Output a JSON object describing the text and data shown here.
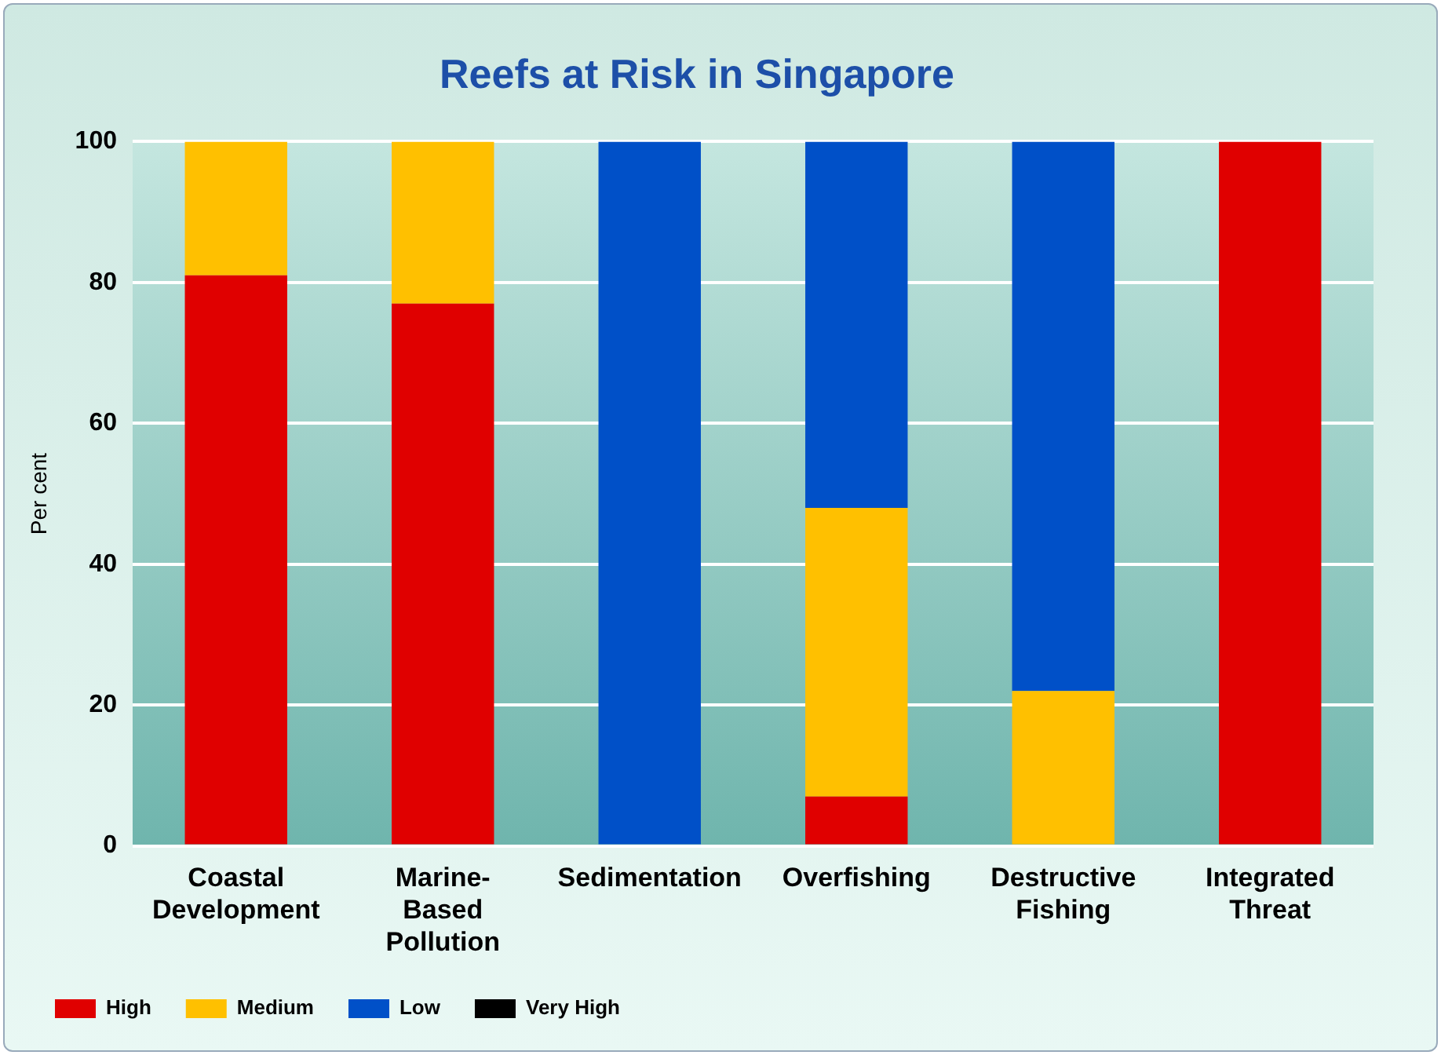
{
  "chart_data": {
    "type": "bar",
    "title": "Reefs at Risk in Singapore",
    "ylabel": "Per cent",
    "categories": [
      "Coastal Development",
      "Marine-Based Pollution",
      "Sedimentation",
      "Overfishing",
      "Destructive Fishing",
      "Integrated Threat"
    ],
    "stacked": true,
    "series": [
      {
        "name": "High",
        "color": "#e00000",
        "values": [
          81,
          77,
          0,
          7,
          0,
          100
        ]
      },
      {
        "name": "Medium",
        "color": "#ffc000",
        "values": [
          19,
          23,
          0,
          41,
          22,
          0
        ]
      },
      {
        "name": "Low",
        "color": "#0050c8",
        "values": [
          0,
          0,
          100,
          52,
          78,
          0
        ]
      },
      {
        "name": "Very High",
        "color": "#000000",
        "values": [
          0,
          0,
          0,
          0,
          0,
          0
        ]
      }
    ],
    "ylim": [
      0,
      100
    ],
    "yticks": [
      0,
      20,
      40,
      60,
      80,
      100
    ],
    "grid": "y",
    "legend": "bottom left"
  }
}
